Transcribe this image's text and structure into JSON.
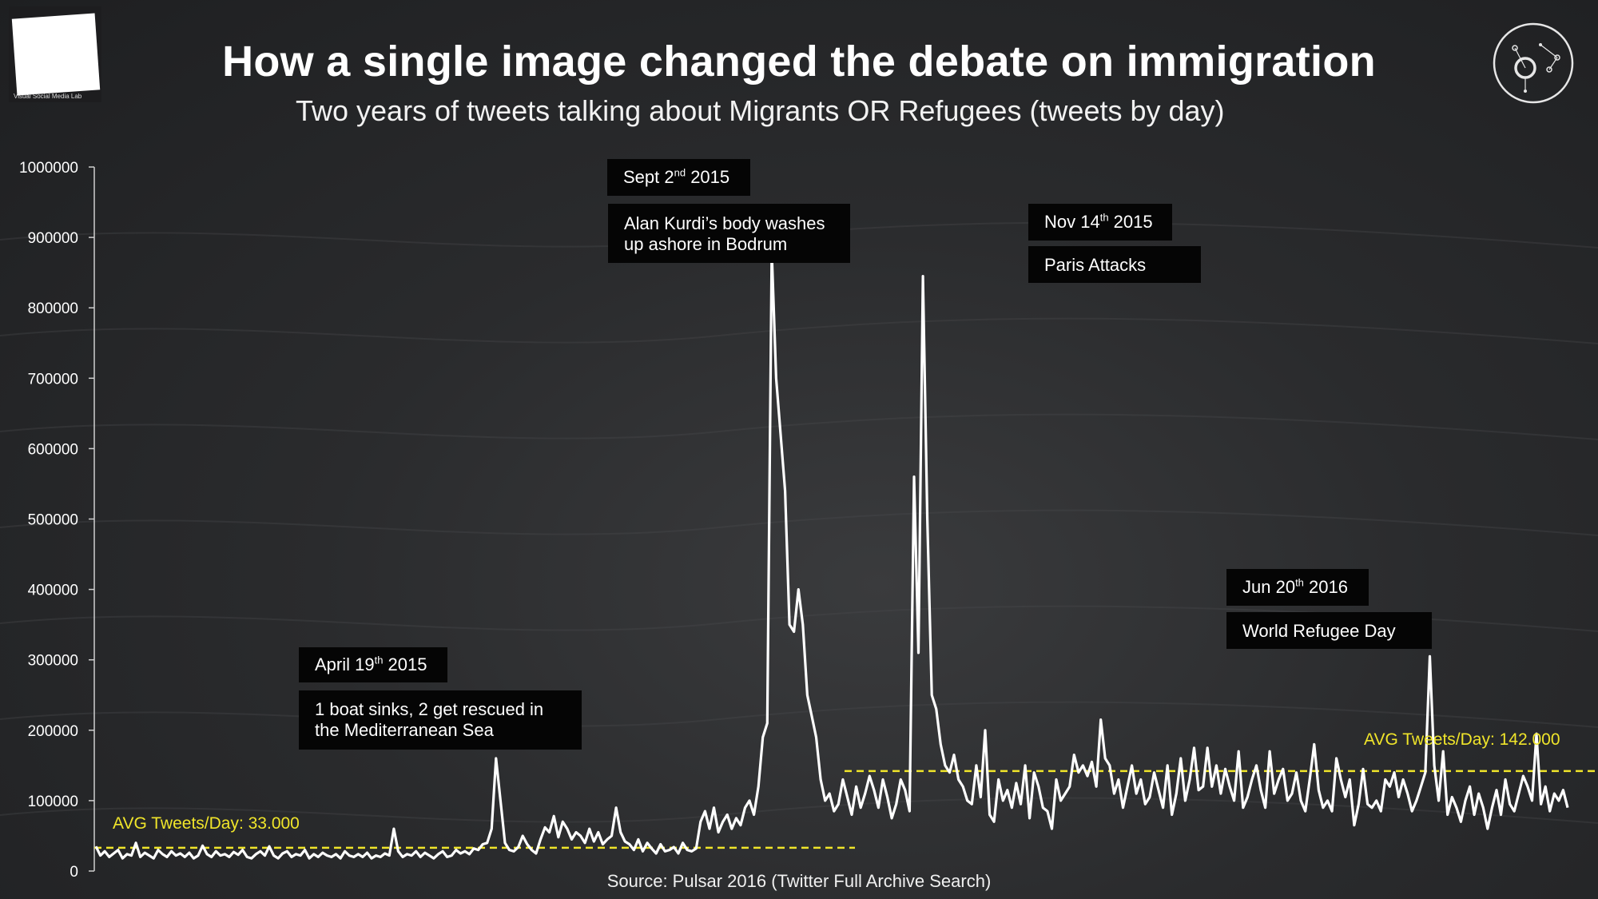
{
  "logo": {
    "left_label": "Visual Social Media Lab",
    "right_icon": "network-circle-icon"
  },
  "header": {
    "title": "How a single image changed the debate on immigration",
    "subtitle": "Two years of tweets talking about Migrants OR Refugees (tweets by day)"
  },
  "annotations": [
    {
      "date": "April 19",
      "date_sup": "th",
      "date_suffix": " 2015",
      "text_lines": [
        "1 boat sinks, 2 get rescued in",
        "the Mediterranean Sea"
      ]
    },
    {
      "date": "Sept 2",
      "date_sup": "nd",
      "date_suffix": " 2015",
      "text_lines": [
        "Alan Kurdi’s body washes",
        "up ashore in Bodrum"
      ]
    },
    {
      "date": "Nov 14",
      "date_sup": "th",
      "date_suffix": " 2015",
      "text_lines": [
        "Paris Attacks"
      ]
    },
    {
      "date": "Jun 20",
      "date_sup": "th",
      "date_suffix": " 2016",
      "text_lines": [
        "World Refugee Day"
      ]
    }
  ],
  "averages": [
    {
      "label": "AVG Tweets/Day: 33.000",
      "value": 33000
    },
    {
      "label": "AVG Tweets/Day: 142.000",
      "value": 142000
    }
  ],
  "source": "Source: Pulsar 2016 (Twitter Full Archive Search)",
  "colors": {
    "line": "#ffffff",
    "avg": "#f0e52a",
    "tag_bg": "#050505"
  },
  "chart_data": {
    "type": "line",
    "title": "How a single image changed the debate on immigration",
    "subtitle": "Two years of tweets talking about Migrants OR Refugees (tweets by day)",
    "ylim": [
      0,
      1000000
    ],
    "y_ticks": [
      "0",
      "100000",
      "200000",
      "300000",
      "400000",
      "500000",
      "600000",
      "700000",
      "800000",
      "900000",
      "1000000"
    ],
    "grid": false,
    "series": [
      {
        "values": [
          35000,
          22000,
          28000,
          20000,
          25000,
          30000,
          18000,
          24000,
          22000,
          40000,
          20000,
          26000,
          22000,
          18000,
          30000,
          24000,
          20000,
          28000,
          22000,
          25000,
          20000,
          26000,
          18000,
          22000,
          36000,
          24000,
          20000,
          28000,
          22000,
          24000,
          20000,
          27000,
          23000,
          30000,
          20000,
          18000,
          24000,
          28000,
          22000,
          35000,
          22000,
          18000,
          25000,
          28000,
          20000,
          24000,
          22000,
          30000,
          18000,
          24000,
          20000,
          26000,
          22000,
          20000,
          24000,
          18000,
          28000,
          22000,
          20000,
          24000,
          20000,
          26000,
          18000,
          22000,
          20000,
          25000,
          22000,
          60000,
          28000,
          20000,
          24000,
          22000,
          28000,
          20000,
          26000,
          22000,
          18000,
          24000,
          28000,
          20000,
          22000,
          30000,
          25000,
          28000,
          24000,
          32000,
          30000,
          38000,
          40000,
          60000,
          160000,
          100000,
          40000,
          30000,
          28000,
          34000,
          50000,
          38000,
          30000,
          25000,
          45000,
          62000,
          55000,
          78000,
          48000,
          70000,
          60000,
          45000,
          55000,
          50000,
          40000,
          60000,
          42000,
          55000,
          38000,
          45000,
          50000,
          90000,
          55000,
          42000,
          38000,
          30000,
          45000,
          28000,
          40000,
          32000,
          25000,
          38000,
          28000,
          30000,
          34000,
          25000,
          40000,
          30000,
          28000,
          32000,
          70000,
          85000,
          60000,
          90000,
          55000,
          70000,
          80000,
          60000,
          75000,
          65000,
          90000,
          100000,
          80000,
          120000,
          190000,
          210000,
          880000,
          700000,
          620000,
          540000,
          350000,
          340000,
          400000,
          350000,
          250000,
          220000,
          190000,
          130000,
          100000,
          110000,
          85000,
          95000,
          130000,
          105000,
          80000,
          120000,
          90000,
          110000,
          135000,
          115000,
          90000,
          130000,
          105000,
          75000,
          95000,
          130000,
          115000,
          85000,
          560000,
          310000,
          845000,
          500000,
          250000,
          230000,
          180000,
          150000,
          140000,
          165000,
          130000,
          120000,
          100000,
          95000,
          150000,
          105000,
          200000,
          80000,
          70000,
          130000,
          100000,
          115000,
          90000,
          125000,
          95000,
          150000,
          75000,
          140000,
          120000,
          90000,
          85000,
          60000,
          130000,
          100000,
          110000,
          120000,
          165000,
          140000,
          150000,
          135000,
          155000,
          120000,
          215000,
          160000,
          150000,
          110000,
          130000,
          90000,
          120000,
          150000,
          110000,
          130000,
          95000,
          105000,
          140000,
          115000,
          90000,
          150000,
          80000,
          110000,
          160000,
          100000,
          130000,
          175000,
          115000,
          120000,
          175000,
          120000,
          150000,
          110000,
          145000,
          120000,
          100000,
          170000,
          90000,
          105000,
          130000,
          150000,
          115000,
          90000,
          170000,
          110000,
          130000,
          145000,
          100000,
          110000,
          140000,
          100000,
          85000,
          130000,
          180000,
          115000,
          90000,
          100000,
          85000,
          160000,
          130000,
          105000,
          130000,
          65000,
          95000,
          145000,
          95000,
          90000,
          100000,
          85000,
          130000,
          120000,
          140000,
          105000,
          130000,
          110000,
          85000,
          100000,
          120000,
          140000,
          305000,
          150000,
          100000,
          170000,
          80000,
          105000,
          90000,
          70000,
          100000,
          120000,
          80000,
          110000,
          90000,
          60000,
          90000,
          115000,
          80000,
          130000,
          95000,
          85000,
          110000,
          135000,
          120000,
          100000,
          195000,
          95000,
          120000,
          85000,
          110000,
          100000,
          115000,
          90000
        ]
      }
    ]
  }
}
